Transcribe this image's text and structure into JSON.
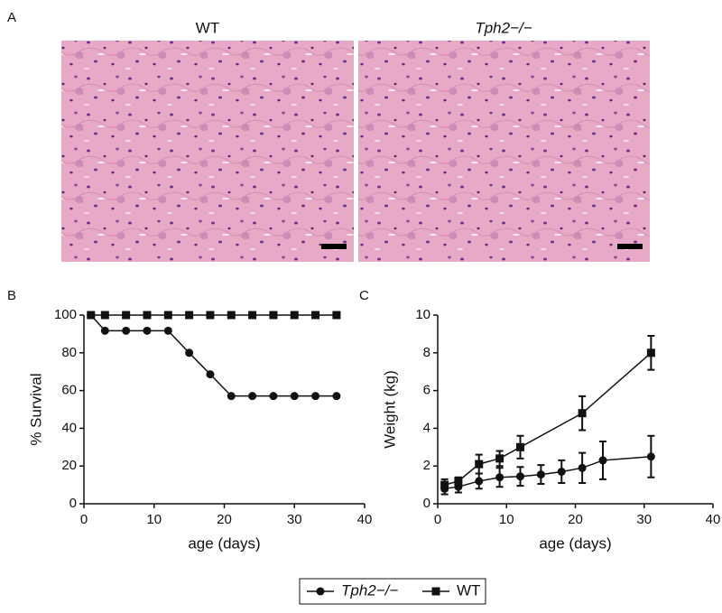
{
  "figure": {
    "panel_labels": [
      "A",
      "B",
      "C"
    ],
    "image_titles": [
      "WT",
      "Tph2−/−"
    ]
  },
  "chart_data": [
    {
      "type": "line",
      "xlabel": "age (days)",
      "ylabel": "% Survival",
      "xlim": [
        0,
        40
      ],
      "xticks": [
        0,
        10,
        20,
        30,
        40
      ],
      "ylim": [
        0,
        100
      ],
      "yticks": [
        0,
        20,
        40,
        60,
        80,
        100
      ],
      "series": [
        {
          "name": "Tph2−/−",
          "marker": "circle",
          "color": "#111111",
          "x": [
            1,
            3,
            6,
            9,
            12,
            15,
            18,
            21,
            24,
            27,
            30,
            33,
            36
          ],
          "values": [
            100,
            91.7,
            91.7,
            91.7,
            91.7,
            80,
            68.6,
            57.1,
            57.1,
            57.1,
            57.1,
            57.1,
            57.1
          ]
        },
        {
          "name": "WT",
          "marker": "square",
          "color": "#111111",
          "x": [
            1,
            3,
            6,
            9,
            12,
            15,
            18,
            21,
            24,
            27,
            30,
            33,
            36
          ],
          "values": [
            100,
            100,
            100,
            100,
            100,
            100,
            100,
            100,
            100,
            100,
            100,
            100,
            100
          ]
        }
      ]
    },
    {
      "type": "line",
      "xlabel": "age (days)",
      "ylabel": "Weight (kg)",
      "xlim": [
        0,
        40
      ],
      "xticks": [
        0,
        10,
        20,
        30,
        40
      ],
      "ylim": [
        0,
        10
      ],
      "yticks": [
        0,
        2,
        4,
        6,
        8,
        10
      ],
      "series": [
        {
          "name": "Tph2−/−",
          "marker": "circle",
          "color": "#111111",
          "x": [
            1,
            3,
            6,
            9,
            12,
            15,
            18,
            21,
            24,
            31
          ],
          "values": [
            0.8,
            0.9,
            1.2,
            1.4,
            1.45,
            1.55,
            1.7,
            1.9,
            2.3,
            2.5
          ],
          "errors": [
            0.3,
            0.3,
            0.4,
            0.5,
            0.5,
            0.5,
            0.6,
            0.8,
            1.0,
            1.1
          ]
        },
        {
          "name": "WT",
          "marker": "square",
          "color": "#111111",
          "x": [
            1,
            3,
            6,
            9,
            12,
            21,
            31
          ],
          "values": [
            1.0,
            1.2,
            2.1,
            2.4,
            3.0,
            4.8,
            8.0
          ],
          "errors": [
            0.3,
            0.2,
            0.5,
            0.4,
            0.6,
            0.9,
            0.9
          ]
        }
      ]
    }
  ]
}
